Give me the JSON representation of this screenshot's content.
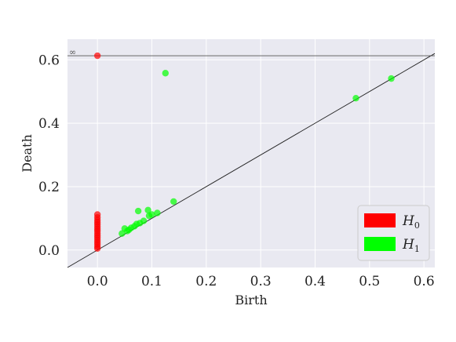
{
  "chart_data": {
    "type": "scatter",
    "title": "",
    "xlabel": "Birth",
    "ylabel": "Death",
    "xlim": [
      -0.055,
      0.62
    ],
    "ylim": [
      -0.055,
      0.665
    ],
    "xticks": [
      "0.0",
      "0.1",
      "0.2",
      "0.3",
      "0.4",
      "0.5",
      "0.6"
    ],
    "yticks": [
      "0.0",
      "0.2",
      "0.4",
      "0.6"
    ],
    "grid": true,
    "legend_position": "bottom-right",
    "infinity_label": "∞",
    "infinity_death": 0.613,
    "diagonal": true,
    "colors": {
      "background": "#e9e9f1",
      "grid": "#ffffff",
      "h0": "#ff0000",
      "h1": "#00ff00"
    },
    "series": [
      {
        "name": "H",
        "subscript": "0",
        "color": "#ff0000",
        "points": [
          {
            "x": 0.0,
            "y": 0.613
          },
          {
            "x": 0.0,
            "y": 0.112
          },
          {
            "x": 0.0,
            "y": 0.103
          },
          {
            "x": 0.0,
            "y": 0.095
          },
          {
            "x": 0.0,
            "y": 0.088
          },
          {
            "x": 0.0,
            "y": 0.081
          },
          {
            "x": 0.0,
            "y": 0.074
          },
          {
            "x": 0.0,
            "y": 0.067
          },
          {
            "x": 0.0,
            "y": 0.06
          },
          {
            "x": 0.0,
            "y": 0.053
          },
          {
            "x": 0.0,
            "y": 0.046
          },
          {
            "x": 0.0,
            "y": 0.039
          },
          {
            "x": 0.0,
            "y": 0.032
          },
          {
            "x": 0.0,
            "y": 0.025
          },
          {
            "x": 0.0,
            "y": 0.018
          },
          {
            "x": 0.0,
            "y": 0.011
          },
          {
            "x": 0.0,
            "y": 0.005
          }
        ]
      },
      {
        "name": "H",
        "subscript": "1",
        "color": "#00ff00",
        "points": [
          {
            "x": 0.125,
            "y": 0.558
          },
          {
            "x": 0.475,
            "y": 0.479
          },
          {
            "x": 0.54,
            "y": 0.541
          },
          {
            "x": 0.14,
            "y": 0.153
          },
          {
            "x": 0.11,
            "y": 0.117
          },
          {
            "x": 0.1,
            "y": 0.112
          },
          {
            "x": 0.093,
            "y": 0.126
          },
          {
            "x": 0.075,
            "y": 0.123
          },
          {
            "x": 0.095,
            "y": 0.108
          },
          {
            "x": 0.085,
            "y": 0.092
          },
          {
            "x": 0.078,
            "y": 0.085
          },
          {
            "x": 0.072,
            "y": 0.082
          },
          {
            "x": 0.068,
            "y": 0.075
          },
          {
            "x": 0.062,
            "y": 0.07
          },
          {
            "x": 0.058,
            "y": 0.064
          },
          {
            "x": 0.055,
            "y": 0.06
          },
          {
            "x": 0.05,
            "y": 0.068
          },
          {
            "x": 0.045,
            "y": 0.052
          }
        ]
      }
    ]
  }
}
